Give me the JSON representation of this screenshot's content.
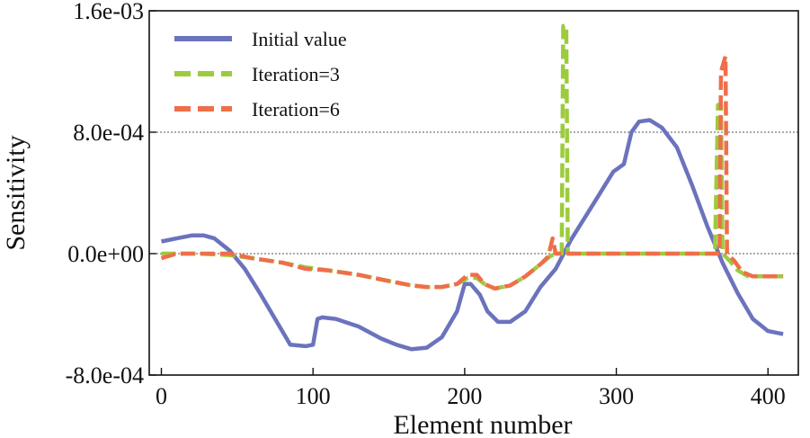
{
  "chart_data": {
    "type": "line",
    "xlabel": "Element number",
    "ylabel": "Sensitivity",
    "xlim": [
      -8,
      420
    ],
    "ylim": [
      -0.0008,
      0.0016
    ],
    "xticks": [
      0,
      100,
      200,
      300,
      400
    ],
    "xtick_labels": [
      "0",
      "100",
      "200",
      "300",
      "400"
    ],
    "yticks": [
      -0.0008,
      0.0,
      0.0008,
      0.0016
    ],
    "ytick_labels": [
      "-8.0e-04",
      "0.0e+00",
      "8.0e-04",
      "1.6e-03"
    ],
    "hgrid_at": [
      0.0,
      0.0008
    ],
    "legend_position": "top-left",
    "series": [
      {
        "name": "Initial value",
        "color": "#6b73bd",
        "dash": "solid",
        "points": [
          [
            0,
            8e-05
          ],
          [
            10,
            0.0001
          ],
          [
            20,
            0.00012
          ],
          [
            28,
            0.00012
          ],
          [
            35,
            0.0001
          ],
          [
            45,
            2e-05
          ],
          [
            55,
            -0.0001
          ],
          [
            65,
            -0.00026
          ],
          [
            75,
            -0.00043
          ],
          [
            85,
            -0.0006
          ],
          [
            95,
            -0.00061
          ],
          [
            100,
            -0.0006
          ],
          [
            103,
            -0.00043
          ],
          [
            106,
            -0.00042
          ],
          [
            115,
            -0.00043
          ],
          [
            130,
            -0.00048
          ],
          [
            145,
            -0.00056
          ],
          [
            155,
            -0.0006
          ],
          [
            165,
            -0.00063
          ],
          [
            175,
            -0.00062
          ],
          [
            185,
            -0.00055
          ],
          [
            195,
            -0.00038
          ],
          [
            200,
            -0.0002
          ],
          [
            204,
            -0.0002
          ],
          [
            210,
            -0.00027
          ],
          [
            215,
            -0.00038
          ],
          [
            222,
            -0.00045
          ],
          [
            230,
            -0.00045
          ],
          [
            240,
            -0.00038
          ],
          [
            250,
            -0.00022
          ],
          [
            260,
            -0.0001
          ],
          [
            270,
            9e-05
          ],
          [
            285,
            0.00033
          ],
          [
            298,
            0.00054
          ],
          [
            305,
            0.00059
          ],
          [
            310,
            0.0008
          ],
          [
            315,
            0.00087
          ],
          [
            322,
            0.00088
          ],
          [
            330,
            0.00083
          ],
          [
            340,
            0.0007
          ],
          [
            350,
            0.00045
          ],
          [
            360,
            0.00018
          ],
          [
            370,
            -6e-05
          ],
          [
            380,
            -0.00026
          ],
          [
            390,
            -0.00043
          ],
          [
            400,
            -0.00051
          ],
          [
            410,
            -0.00053
          ]
        ]
      },
      {
        "name": "Iteration=3",
        "color": "#9ccc3c",
        "dash": "dashed",
        "points": [
          [
            0,
            0.0
          ],
          [
            25,
            0.0
          ],
          [
            45,
            -1e-05
          ],
          [
            60,
            -3e-05
          ],
          [
            80,
            -6e-05
          ],
          [
            95,
            -9e-05
          ],
          [
            110,
            -0.00011
          ],
          [
            130,
            -0.00014
          ],
          [
            150,
            -0.00018
          ],
          [
            165,
            -0.00021
          ],
          [
            175,
            -0.00022
          ],
          [
            185,
            -0.00022
          ],
          [
            195,
            -0.0002
          ],
          [
            202,
            -0.00016
          ],
          [
            208,
            -0.00016
          ],
          [
            213,
            -0.0002
          ],
          [
            220,
            -0.00023
          ],
          [
            230,
            -0.00021
          ],
          [
            240,
            -0.00015
          ],
          [
            250,
            -7e-05
          ],
          [
            256,
            -2e-05
          ],
          [
            260,
            0.0
          ],
          [
            264,
            0.0
          ],
          [
            265,
            0.0015
          ],
          [
            267,
            0.0015
          ],
          [
            268,
            0.0
          ],
          [
            290,
            0.0
          ],
          [
            310,
            0.0
          ],
          [
            330,
            0.0
          ],
          [
            350,
            0.0
          ],
          [
            365,
            0.0
          ],
          [
            367,
            0.00098
          ],
          [
            369,
            0.00098
          ],
          [
            370,
            0.0
          ],
          [
            375,
            -5e-05
          ],
          [
            380,
            -0.00011
          ],
          [
            387,
            -0.00015
          ],
          [
            395,
            -0.00015
          ],
          [
            410,
            -0.00015
          ]
        ]
      },
      {
        "name": "Iteration=6",
        "color": "#ee6f4a",
        "dash": "dashed",
        "points": [
          [
            0,
            -3e-05
          ],
          [
            10,
            0.0
          ],
          [
            25,
            0.0
          ],
          [
            45,
            0.0
          ],
          [
            60,
            -3e-05
          ],
          [
            80,
            -6e-05
          ],
          [
            95,
            -0.0001
          ],
          [
            110,
            -0.00011
          ],
          [
            130,
            -0.00014
          ],
          [
            150,
            -0.00018
          ],
          [
            165,
            -0.00021
          ],
          [
            175,
            -0.00022
          ],
          [
            185,
            -0.00022
          ],
          [
            195,
            -0.0002
          ],
          [
            202,
            -0.00014
          ],
          [
            208,
            -0.00014
          ],
          [
            213,
            -0.0002
          ],
          [
            220,
            -0.00023
          ],
          [
            230,
            -0.00021
          ],
          [
            240,
            -0.00015
          ],
          [
            250,
            -7e-05
          ],
          [
            255,
            -2e-05
          ],
          [
            258,
            0.0001
          ],
          [
            260,
            0.0
          ],
          [
            270,
            0.0
          ],
          [
            290,
            0.0
          ],
          [
            310,
            0.0
          ],
          [
            330,
            0.0
          ],
          [
            350,
            0.0
          ],
          [
            368,
            0.0
          ],
          [
            369,
            0.0012
          ],
          [
            372,
            0.0013
          ],
          [
            373,
            0.0
          ],
          [
            378,
            -5e-05
          ],
          [
            383,
            -0.00012
          ],
          [
            390,
            -0.00015
          ],
          [
            400,
            -0.00015
          ],
          [
            410,
            -0.00015
          ]
        ]
      }
    ]
  }
}
